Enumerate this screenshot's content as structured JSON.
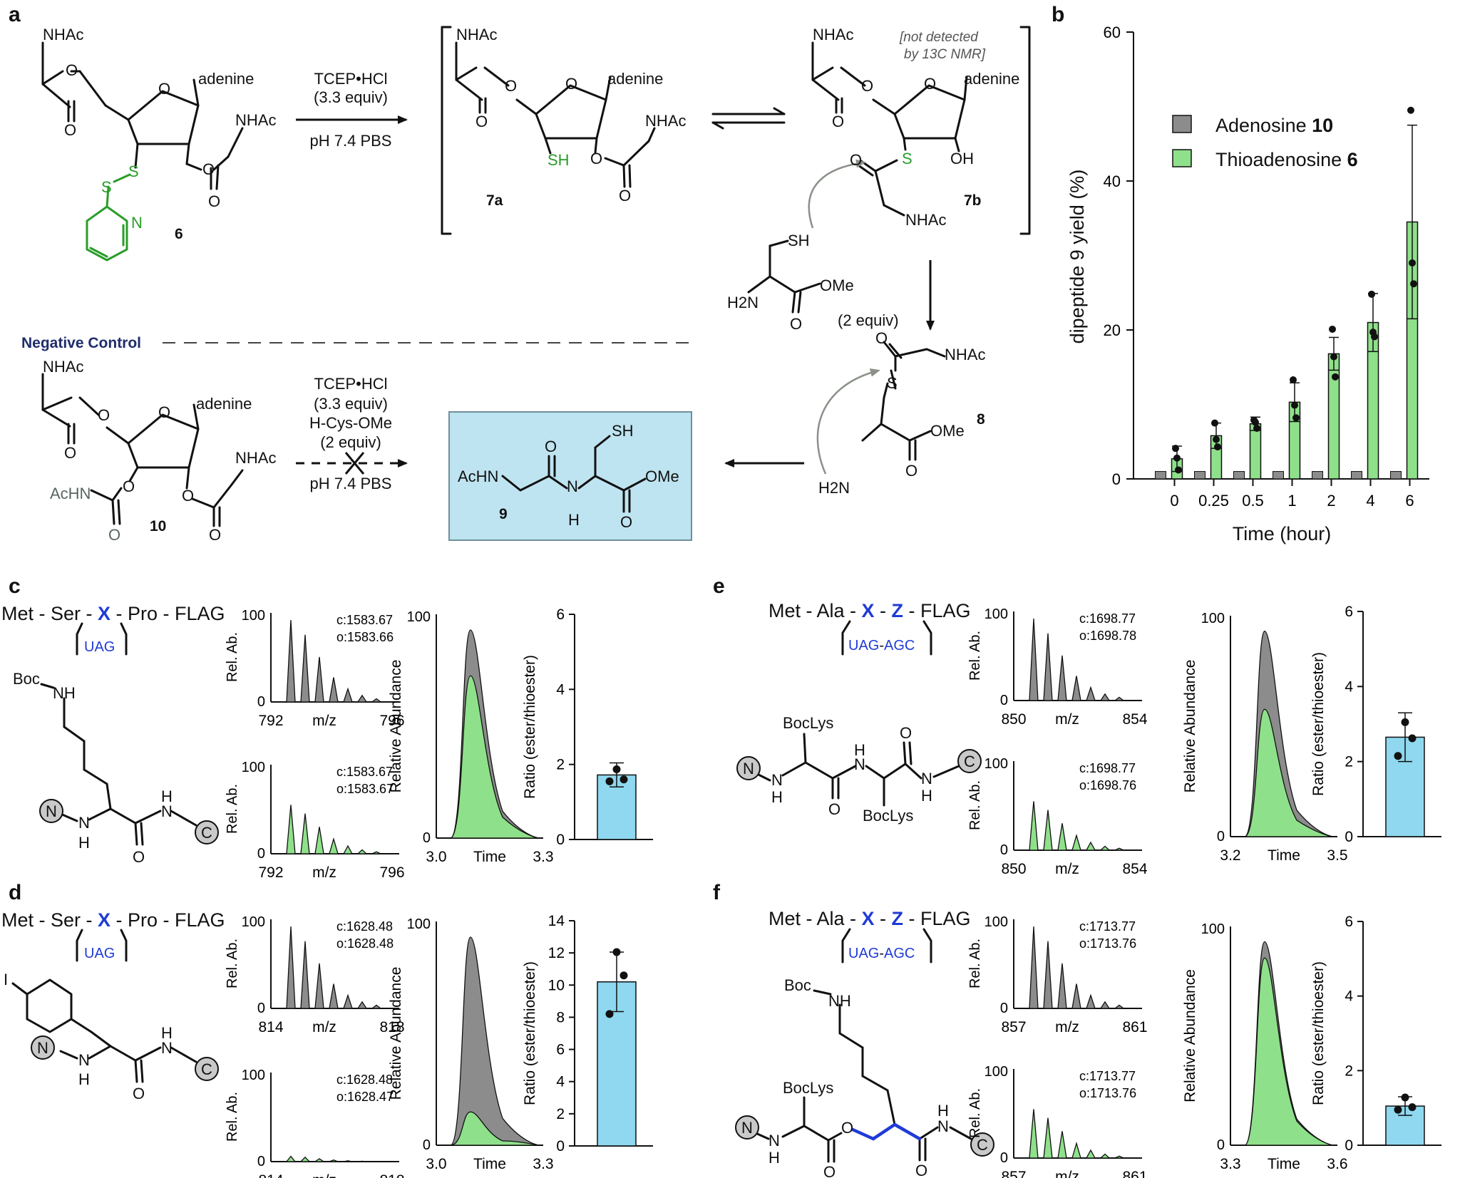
{
  "panels": {
    "a": "a",
    "b": "b",
    "c": "c",
    "d": "d",
    "e": "e",
    "f": "f"
  },
  "scheme": {
    "reagents_top": [
      "TCEP•HCl",
      "(3.3 equiv)",
      "pH 7.4 PBS"
    ],
    "reagents_bottom": [
      "TCEP•HCl",
      "(3.3 equiv)",
      "H-Cys-OMe",
      "(2 equiv)",
      "pH 7.4 PBS"
    ],
    "cys_equiv": "(2 equiv)",
    "not_detected": [
      "[not detected",
      "by 13C NMR]"
    ],
    "negative_control": "Negative Control",
    "labels": {
      "NHAc": "NHAc",
      "AcHN": "AcHN",
      "adenine": "adenine",
      "SH": "SH",
      "OH": "OH",
      "S": "S",
      "N": "N",
      "O": "O",
      "OMe": "OMe",
      "H2N": "H2N",
      "H": "H"
    },
    "compounds": {
      "c6": "6",
      "c7a": "7a",
      "c7b": "7b",
      "c8": "8",
      "c9": "9",
      "c10": "10"
    }
  },
  "panel_b": {
    "ylabel": "dipeptide 9 yield (%)",
    "xlabel": "Time (hour)",
    "legend": [
      "Adenosine 10",
      "Thioadenosine 6"
    ]
  },
  "panels_cdef": [
    {
      "id": "c",
      "sequence": [
        "Met - Ser - ",
        "X",
        " - Pro - FLAG"
      ],
      "codon": "UAG",
      "ms_label": "Rel. Ab.",
      "ms_axis": [
        "792",
        "m/z",
        "796"
      ],
      "ms_top": [
        "c:1583.67",
        "o:1583.66"
      ],
      "ms_bottom": [
        "c:1583.67",
        "o:1583.67"
      ],
      "chrom_ylabel": "Relative Abundance",
      "chrom_axis": [
        "3.0",
        "Time",
        "3.3"
      ],
      "ratio_ylabel": "Ratio (ester/thioester)"
    },
    {
      "id": "d",
      "sequence": [
        "Met - Ser - ",
        "X",
        " - Pro - FLAG"
      ],
      "codon": "UAG",
      "ms_label": "Rel. Ab.",
      "ms_axis": [
        "814",
        "m/z",
        "818"
      ],
      "ms_top": [
        "c:1628.48",
        "o:1628.48"
      ],
      "ms_bottom": [
        "c:1628.48",
        "o:1628.47"
      ],
      "chrom_ylabel": "Relative Abundance",
      "chrom_axis": [
        "3.0",
        "Time",
        "3.3"
      ],
      "ratio_ylabel": "Ratio (ester/thioester)"
    },
    {
      "id": "e",
      "sequence": [
        "Met - Ala - ",
        "X",
        " - ",
        "Z",
        " - FLAG"
      ],
      "codon": [
        "UAG",
        "-",
        "AGC"
      ],
      "ms_label": "Rel. Ab.",
      "ms_axis": [
        "850",
        "m/z",
        "854"
      ],
      "ms_top": [
        "c:1698.77",
        "o:1698.78"
      ],
      "ms_bottom": [
        "c:1698.77",
        "o:1698.76"
      ],
      "chrom_ylabel": "Relative Abundance",
      "chrom_axis": [
        "3.2",
        "Time",
        "3.5"
      ],
      "ratio_ylabel": "Ratio (ester/thioester)"
    },
    {
      "id": "f",
      "sequence": [
        "Met - Ala - ",
        "X",
        " - ",
        "Z",
        " - FLAG"
      ],
      "codon": [
        "UAG",
        "-",
        "AGC"
      ],
      "ms_label": "Rel. Ab.",
      "ms_axis": [
        "857",
        "m/z",
        "861"
      ],
      "ms_top": [
        "c:1713.77",
        "o:1713.76"
      ],
      "ms_bottom": [
        "c:1713.77",
        "o:1713.76"
      ],
      "chrom_ylabel": "Relative Abundance",
      "chrom_axis": [
        "3.3",
        "Time",
        "3.6"
      ],
      "ratio_ylabel": "Ratio (ester/thioester)"
    }
  ],
  "struct_labels": {
    "Boc": "Boc",
    "NH": "NH",
    "N": "N",
    "C": "C",
    "H": "H",
    "O": "O",
    "I": "I",
    "BocLys": "BocLys"
  },
  "chart_data": [
    {
      "type": "bar",
      "panel": "b",
      "categories": [
        "0",
        "0.25",
        "0.5",
        "1",
        "2",
        "4",
        "6"
      ],
      "series": [
        {
          "name": "Adenosine 10",
          "color": "#8c8c8c",
          "values": [
            1,
            1,
            1,
            1,
            1,
            1,
            1
          ]
        },
        {
          "name": "Thioadenosine 6",
          "color": "#8fe08a",
          "values": [
            2.7,
            5.8,
            7.4,
            10.3,
            16.8,
            21.0,
            34.5
          ],
          "error": [
            1.7,
            1.7,
            0.9,
            2.6,
            2.2,
            3.9,
            13.0
          ],
          "points": [
            [
              4.1,
              2.8,
              1.2
            ],
            [
              7.5,
              5.3,
              4.3
            ],
            [
              7.9,
              7.6,
              6.8
            ],
            [
              13.3,
              9.9,
              8.2
            ],
            [
              20.1,
              16.4,
              13.7
            ],
            [
              24.8,
              19.7,
              19.1
            ],
            [
              49.5,
              29.0,
              26.2
            ]
          ]
        }
      ],
      "xlabel": "Time (hour)",
      "ylabel": "dipeptide 9 yield (%)",
      "ylim": [
        0,
        60
      ],
      "yticks": [
        0,
        20,
        40,
        60
      ],
      "legend": "top-right"
    },
    {
      "type": "bar",
      "panel": "c",
      "categories": [
        ""
      ],
      "values": [
        1.72
      ],
      "error": [
        0.32
      ],
      "points": [
        1.87,
        1.6,
        1.55
      ],
      "ylabel": "Ratio (ester/thioester)",
      "ylim": [
        0,
        6
      ],
      "yticks": [
        0,
        2,
        4,
        6
      ],
      "color": "#8fd8ef"
    },
    {
      "type": "bar",
      "panel": "d",
      "categories": [
        ""
      ],
      "values": [
        10.2
      ],
      "error": [
        1.85
      ],
      "points": [
        12.05,
        10.6,
        8.2
      ],
      "ylabel": "Ratio (ester/thioester)",
      "ylim": [
        0,
        14
      ],
      "yticks": [
        0,
        2,
        4,
        6,
        8,
        10,
        12,
        14
      ],
      "color": "#8fd8ef"
    },
    {
      "type": "bar",
      "panel": "e",
      "categories": [
        ""
      ],
      "values": [
        2.65
      ],
      "error": [
        0.65
      ],
      "points": [
        3.05,
        2.62,
        2.15
      ],
      "ylabel": "Ratio (ester/thioester)",
      "ylim": [
        0,
        6
      ],
      "yticks": [
        0,
        2,
        4,
        6
      ],
      "color": "#8fd8ef"
    },
    {
      "type": "bar",
      "panel": "f",
      "categories": [
        ""
      ],
      "values": [
        1.05
      ],
      "error": [
        0.25
      ],
      "points": [
        1.28,
        1.02,
        0.95
      ],
      "ylabel": "Ratio (ester/thioester)",
      "ylim": [
        0,
        6
      ],
      "yticks": [
        0,
        2,
        4,
        6
      ],
      "color": "#8fd8ef"
    }
  ]
}
